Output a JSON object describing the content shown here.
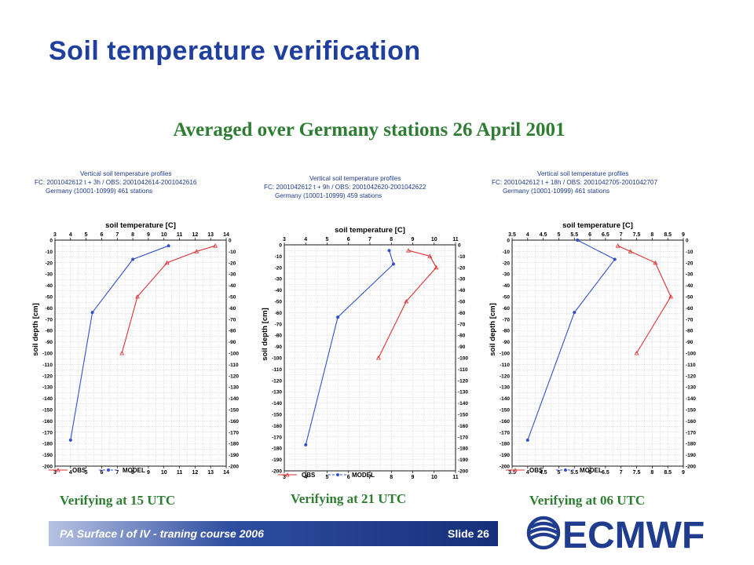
{
  "slide": {
    "title": "Soil temperature verification",
    "subtitle": "Averaged over Germany stations 26 April 2001",
    "footer_left": "PA Surface I of IV - traning course 2006",
    "footer_right": "Slide 26",
    "logo_text": "ECMWF",
    "colors": {
      "title": "#1f3f9f",
      "subtitle": "#2e7d32",
      "obs": "#e03030",
      "model": "#3050d0",
      "footer": "#1f3c8f"
    }
  },
  "chart_data": [
    {
      "type": "line",
      "header": [
        "Vertical soil temperature profiles",
        "FC: 2001042612 t +   3h  /  OBS: 2001042614-2001042616",
        "Germany       (10001-10999)    461 stations"
      ],
      "xlabel": "soil temperature [C]",
      "ylabel": "soil depth [cm]",
      "xlim": [
        3,
        14
      ],
      "xticks": [
        "3",
        "4",
        "5",
        "6",
        "7",
        "8",
        "9",
        "10",
        "11",
        "12",
        "13",
        "14"
      ],
      "ylim": [
        0,
        -200
      ],
      "yticks": [
        "0",
        "-10",
        "-20",
        "-30",
        "-40",
        "-50",
        "-60",
        "-70",
        "-80",
        "-90",
        "-100",
        "-110",
        "-120",
        "-130",
        "-140",
        "-150",
        "-160",
        "-170",
        "-180",
        "-190",
        "-200"
      ],
      "grid": true,
      "legend": [
        "OBS",
        "MODEL"
      ],
      "series": [
        {
          "name": "OBS",
          "color": "#e03030",
          "marker": "triangle",
          "x": [
            13.3,
            12.1,
            10.2,
            8.3,
            7.3
          ],
          "y": [
            -5,
            -10,
            -20,
            -50,
            -100
          ]
        },
        {
          "name": "MODEL",
          "color": "#3050d0",
          "marker": "dot",
          "x": [
            10.3,
            8.0,
            5.4,
            4.0
          ],
          "y": [
            -5,
            -17,
            -64,
            -177
          ]
        }
      ],
      "caption": "Verifying at 15 UTC"
    },
    {
      "type": "line",
      "header": [
        "Vertical soil temperature profiles",
        "FC: 2001042612 t +   9h  /  OBS: 2001042620-2001042622",
        "Germany       (10001-10999)    459 stations"
      ],
      "xlabel": "soil temperature [C]",
      "ylabel": "soil depth [cm]",
      "xlim": [
        3,
        11
      ],
      "xticks": [
        "3",
        "4",
        "5",
        "6",
        "7",
        "8",
        "9",
        "10",
        "11"
      ],
      "ylim": [
        0,
        -200
      ],
      "yticks": [
        "0",
        "-10",
        "-20",
        "-30",
        "-40",
        "-50",
        "-60",
        "-70",
        "-80",
        "-90",
        "-100",
        "-110",
        "-120",
        "-130",
        "-140",
        "-150",
        "-160",
        "-170",
        "-180",
        "-190",
        "-200"
      ],
      "grid": true,
      "legend": [
        "OBS",
        "MODEL"
      ],
      "series": [
        {
          "name": "OBS",
          "color": "#e03030",
          "marker": "triangle",
          "x": [
            8.8,
            9.8,
            10.1,
            8.7,
            7.4
          ],
          "y": [
            -5,
            -10,
            -20,
            -50,
            -100
          ]
        },
        {
          "name": "MODEL",
          "color": "#3050d0",
          "marker": "dot",
          "x": [
            7.9,
            8.1,
            5.5,
            4.0
          ],
          "y": [
            -5,
            -17,
            -64,
            -177
          ]
        }
      ],
      "caption": "Verifying at 21 UTC"
    },
    {
      "type": "line",
      "header": [
        "Vertical soil temperature profiles",
        "FC: 2001042612 t + 18h  /  OBS: 2001042705-2001042707",
        "Germany       (10001-10999)    461 stations"
      ],
      "xlabel": "soil temperature [C]",
      "ylabel": "soil depth [cm]",
      "xlim": [
        3.5,
        9
      ],
      "xticks": [
        "3.5",
        "4",
        "4.5",
        "5",
        "5.5",
        "6",
        "6.5",
        "7",
        "7.5",
        "8",
        "8.5",
        "9"
      ],
      "ylim": [
        0,
        -200
      ],
      "yticks": [
        "0",
        "-10",
        "-20",
        "-30",
        "-40",
        "-50",
        "-60",
        "-70",
        "-80",
        "-90",
        "-100",
        "-110",
        "-120",
        "-130",
        "-140",
        "-150",
        "-160",
        "-170",
        "-180",
        "-190",
        "-200"
      ],
      "grid": true,
      "legend": [
        "OBS",
        "MODEL"
      ],
      "series": [
        {
          "name": "OBS",
          "color": "#e03030",
          "marker": "triangle",
          "x": [
            6.9,
            7.3,
            8.1,
            8.6,
            7.5
          ],
          "y": [
            -5,
            -10,
            -20,
            -50,
            -100
          ]
        },
        {
          "name": "MODEL",
          "color": "#3050d0",
          "marker": "dot",
          "x": [
            5.6,
            6.8,
            5.5,
            4.0
          ],
          "y": [
            0,
            -17,
            -64,
            -177
          ]
        }
      ],
      "caption": "Verifying at 06 UTC"
    }
  ]
}
